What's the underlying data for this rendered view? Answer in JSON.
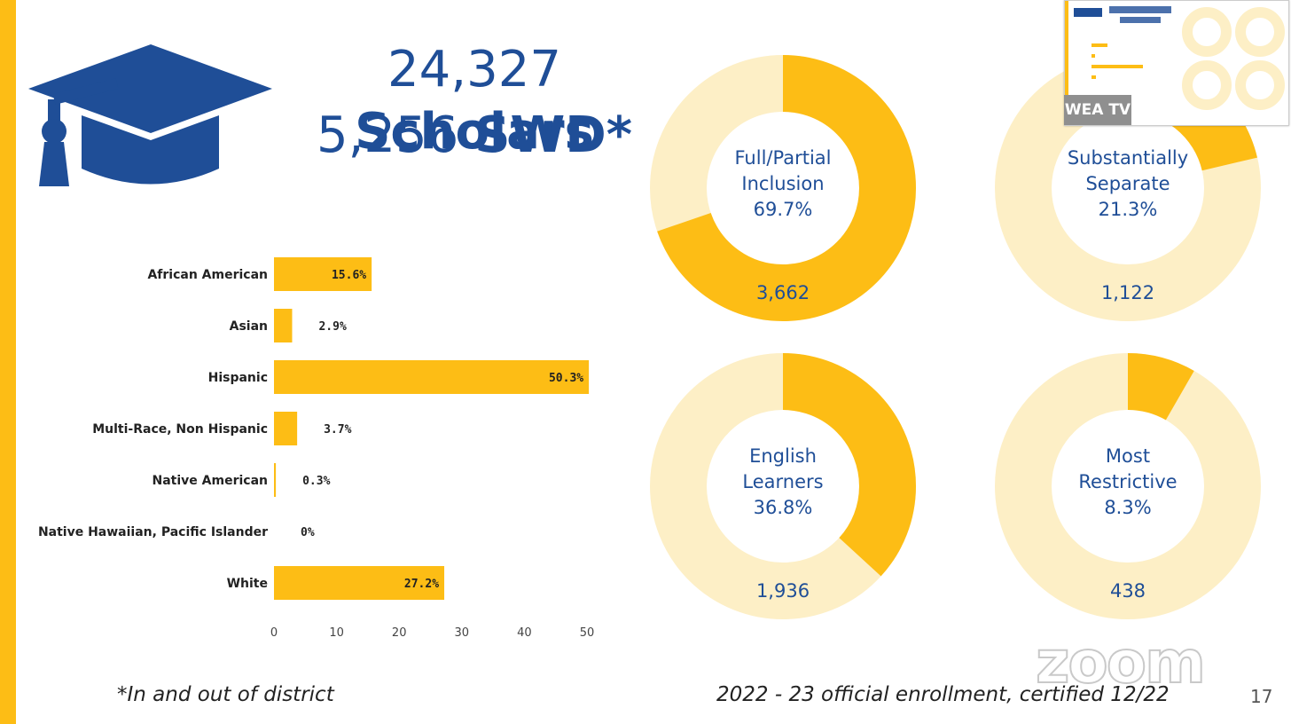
{
  "slide": {
    "title_line1_number": "24,327",
    "title_line1_word": "Scholars",
    "title_line2_number": "5,256",
    "title_line2_word": "SWD*",
    "footnote": "*In and out of district",
    "source": "2022 - 23 official enrollment, certified 12/22",
    "page_number": "17"
  },
  "overlay": {
    "thumbnail_label": "WEA TV",
    "zoom_watermark": "zoom"
  },
  "colors": {
    "accent": "#fdbd15",
    "accent_light": "#fdefc6",
    "title_blue": "#1f4e97"
  },
  "chart_data": [
    {
      "type": "bar",
      "orientation": "horizontal",
      "categories": [
        "African American",
        "Asian",
        "Hispanic",
        "Multi-Race, Non Hispanic",
        "Native American",
        "Native Hawaiian, Pacific Islander",
        "White"
      ],
      "values": [
        15.6,
        2.9,
        50.3,
        3.7,
        0.3,
        0,
        27.2
      ],
      "labels": [
        "15.6%",
        "2.9%",
        "50.3%",
        "3.7%",
        "0.3%",
        "0%",
        "27.2%"
      ],
      "xlim": [
        0,
        50
      ],
      "xticks": [
        0,
        10,
        20,
        30,
        40,
        50
      ],
      "grid": false
    },
    {
      "type": "pie",
      "donuts": [
        {
          "lines": [
            "Full/Partial",
            "Inclusion"
          ],
          "percent_text": "69.7%",
          "value": 69.7,
          "count": "3,662"
        },
        {
          "lines": [
            "Substantially",
            "Separate"
          ],
          "percent_text": "21.3%",
          "value": 21.3,
          "count": "1,122"
        },
        {
          "lines": [
            "English",
            "Learners"
          ],
          "percent_text": "36.8%",
          "value": 36.8,
          "count": "1,936"
        },
        {
          "lines": [
            "Most",
            "Restrictive"
          ],
          "percent_text": "8.3%",
          "value": 8.3,
          "count": "438"
        }
      ]
    }
  ]
}
